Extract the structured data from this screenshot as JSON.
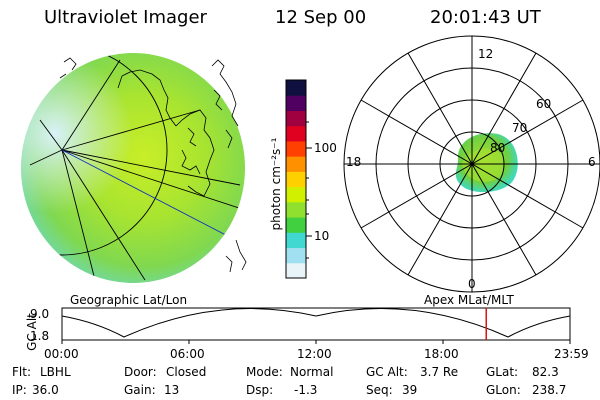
{
  "header": {
    "title": "Ultraviolet Imager",
    "date": "12 Sep 00",
    "time": "20:01:43 UT"
  },
  "geo_map": {
    "label": "Geographic Lat/Lon"
  },
  "colorbar": {
    "unit_label": "photon cm⁻²s⁻¹",
    "ticks": [
      "100",
      "10"
    ],
    "colors": [
      "#e8f4f8",
      "#a0e0f0",
      "#40d8d0",
      "#40d040",
      "#90e030",
      "#d0f000",
      "#ffd000",
      "#ff9000",
      "#ff4000",
      "#e00020",
      "#a00040",
      "#500060",
      "#101040"
    ]
  },
  "polar_plot": {
    "label": "Apex MLat/MLT",
    "mlt_labels": {
      "top": "12",
      "left": "18",
      "right": "6",
      "bottom": "0"
    },
    "lat_labels": [
      "60",
      "70",
      "80"
    ]
  },
  "orbit": {
    "axis_title": "GC Alt",
    "y_ticks": [
      "9.0",
      "1.8"
    ],
    "x_ticks": [
      "00:00",
      "06:00",
      "12:00",
      "18:00",
      "23:59"
    ],
    "marker_time": "20:01:43",
    "marker_color": "#e01010"
  },
  "status": {
    "flt_label": "Flt:",
    "flt_value": "LBHL",
    "ip_label": "IP:",
    "ip_value": "36.0",
    "door_label": "Door:",
    "door_value": "Closed",
    "gain_label": "Gain:",
    "gain_value": "13",
    "mode_label": "Mode:",
    "mode_value": "Normal",
    "dsp_label": "Dsp:",
    "dsp_value": "-1.3",
    "gcalt_label": "GC Alt:",
    "gcalt_value": "3.7 Re",
    "seq_label": "Seq:",
    "seq_value": "39",
    "glat_label": "GLat:",
    "glat_value": "82.3",
    "glon_label": "GLon:",
    "glon_value": "238.7"
  }
}
